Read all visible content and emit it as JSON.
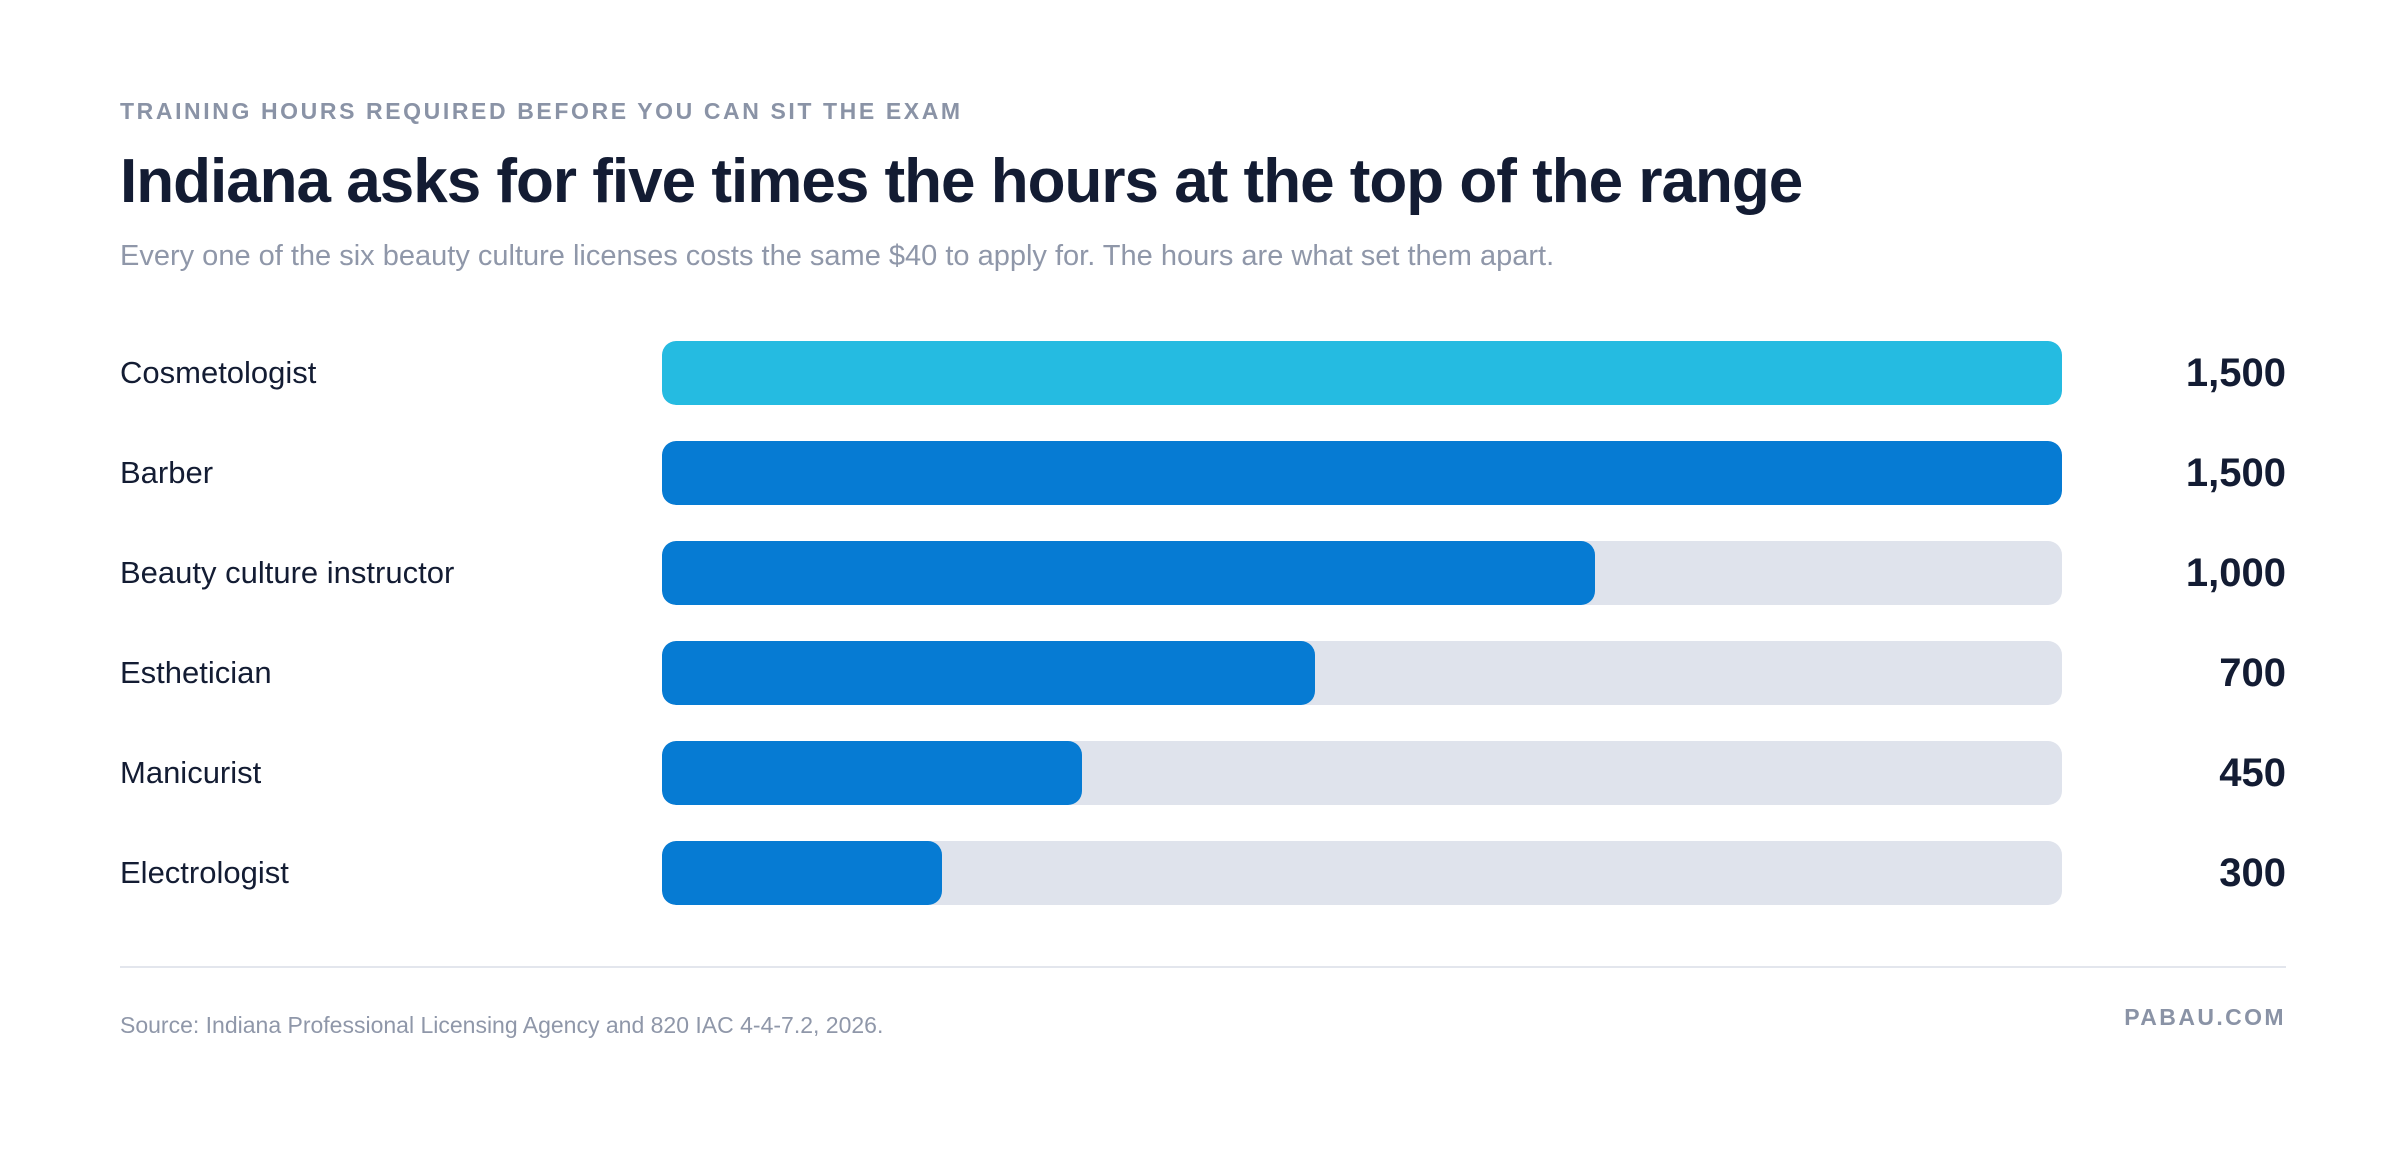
{
  "header": {
    "eyebrow": "TRAINING HOURS REQUIRED BEFORE YOU CAN SIT THE EXAM",
    "title": "Indiana asks for five times the hours at the top of the range",
    "subtitle": "Every one of the six beauty culture licenses costs the same $40 to apply for. The hours are what set them apart."
  },
  "chart_data": {
    "type": "bar",
    "orientation": "horizontal",
    "title": "Indiana asks for five times the hours at the top of the range",
    "categories": [
      "Cosmetologist",
      "Barber",
      "Beauty culture instructor",
      "Esthetician",
      "Manicurist",
      "Electrologist"
    ],
    "values": [
      1500,
      1500,
      1000,
      700,
      450,
      300
    ],
    "value_labels": [
      "1,500",
      "1,500",
      "1,000",
      "700",
      "450",
      "300"
    ],
    "xlim": [
      0,
      1500
    ],
    "grid": false,
    "legend": "none",
    "colors": {
      "highlight": "#25bbe1",
      "bar": "#067bd3",
      "track": "#dfe3ec"
    },
    "highlight_index": 0
  },
  "footer": {
    "source": "Source: Indiana Professional Licensing Agency and 820 IAC 4-4-7.2, 2026.",
    "brand": "PABAU.COM"
  }
}
